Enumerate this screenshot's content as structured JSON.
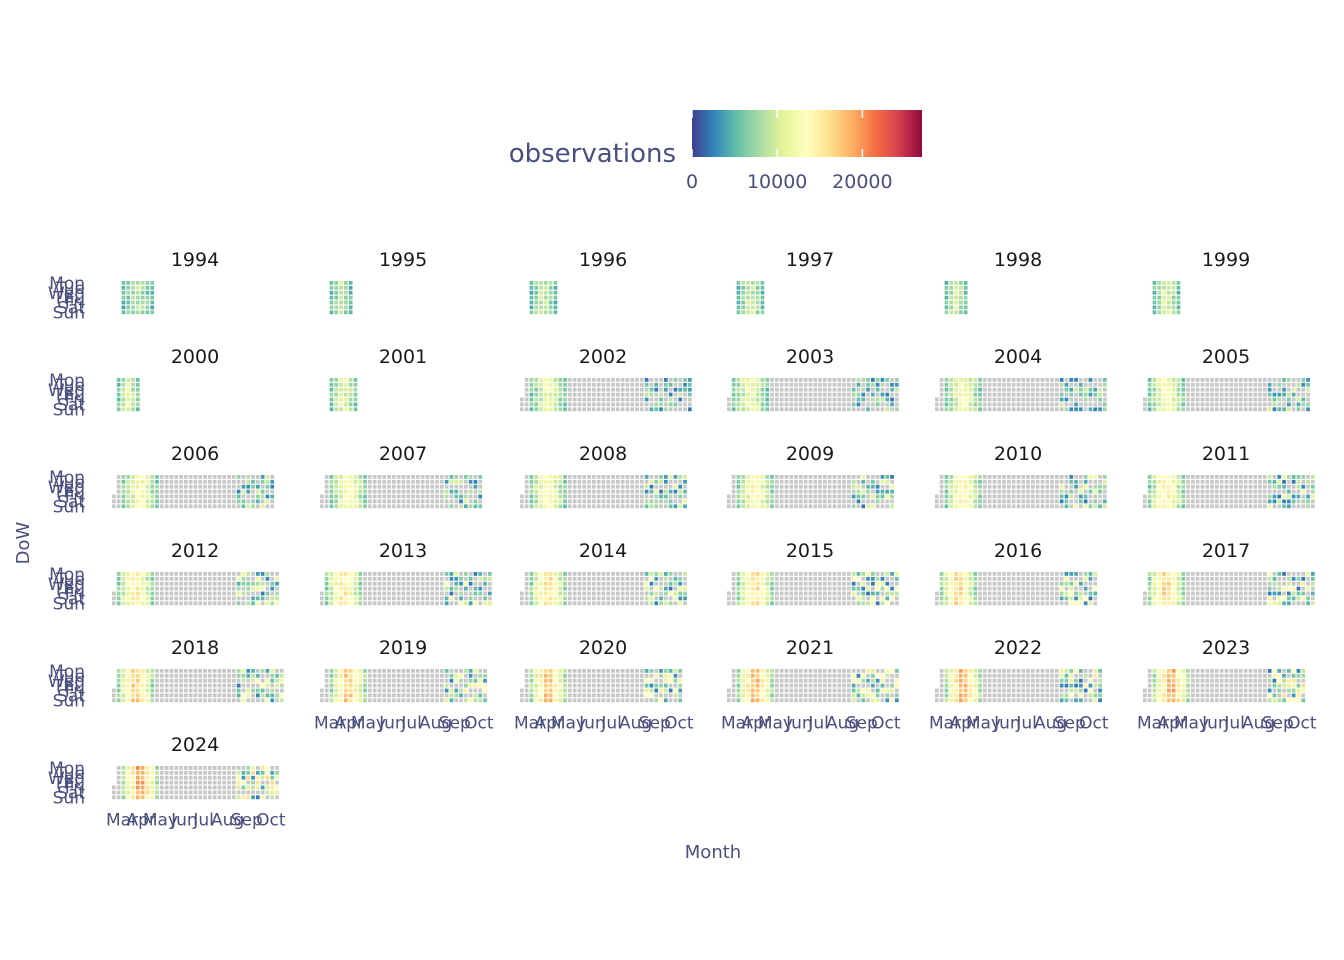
{
  "chart_data": {
    "type": "heatmap",
    "facet": "year",
    "legend": {
      "title": "observations",
      "ticks": [
        0,
        10000,
        20000
      ],
      "tick_labels": [
        "0",
        "10000",
        "20000"
      ],
      "range": [
        0,
        27000
      ],
      "colors": [
        "#3f3e8f",
        "#3288bd",
        "#66c2a5",
        "#abdda4",
        "#e6f598",
        "#ffffbf",
        "#fee08b",
        "#fdae61",
        "#f46d43",
        "#d53e4f",
        "#8c0a3e"
      ],
      "missing_color": "#c8c8c8",
      "placement": "top"
    },
    "xlabel": "Month",
    "ylabel": "DoW",
    "x_tick_labels": [
      "Mar",
      "Apr",
      "May",
      "Jun",
      "Jul",
      "Aug",
      "Sep",
      "Oct"
    ],
    "y_tick_labels": [
      "Mon",
      "Tue",
      "Wed",
      "Thu",
      "Fri",
      "Sat",
      "Sun"
    ],
    "years": [
      1994,
      1995,
      1996,
      1997,
      1998,
      1999,
      2000,
      2001,
      2002,
      2003,
      2004,
      2005,
      2006,
      2007,
      2008,
      2009,
      2010,
      2011,
      2012,
      2013,
      2014,
      2015,
      2016,
      2017,
      2018,
      2019,
      2020,
      2021,
      2022,
      2023,
      2024
    ]
  }
}
